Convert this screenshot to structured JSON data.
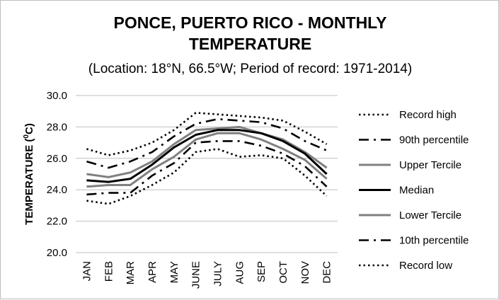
{
  "chart_data": {
    "type": "line",
    "title_line1": "PONCE, PUERTO RICO - MONTHLY",
    "title_line2": "TEMPERATURE",
    "subtitle": "(Location: 18°N, 66.5°W; Period of record: 1971-2014)",
    "ylabel_main": "TEMPERATURE (",
    "ylabel_sup": "0",
    "ylabel_end": "C)",
    "xlabel": "",
    "ylim": [
      20,
      30
    ],
    "yticks": [
      "20.0",
      "22.0",
      "24.0",
      "26.0",
      "28.0",
      "30.0"
    ],
    "grid": true,
    "legend_position": "right",
    "categories": [
      "JAN",
      "FEB",
      "MAR",
      "APR",
      "MAY",
      "JUNE",
      "JULY",
      "AUG",
      "SEP",
      "OCT",
      "NOV",
      "DEC"
    ],
    "series": [
      {
        "name": "Record high",
        "style": "dotted",
        "color": "#000000",
        "values": [
          26.6,
          26.2,
          26.5,
          27.0,
          27.8,
          28.9,
          28.8,
          28.7,
          28.6,
          28.4,
          27.7,
          26.9
        ]
      },
      {
        "name": "90th percentile",
        "style": "dashdot",
        "color": "#000000",
        "values": [
          25.8,
          25.4,
          25.8,
          26.4,
          27.4,
          28.2,
          28.5,
          28.4,
          28.3,
          27.9,
          27.1,
          26.5
        ]
      },
      {
        "name": "Upper Tercile",
        "style": "solid",
        "color": "#808080",
        "values": [
          25.0,
          24.8,
          25.1,
          25.8,
          26.9,
          27.8,
          27.9,
          28.0,
          27.6,
          27.2,
          26.4,
          25.4
        ]
      },
      {
        "name": "Median",
        "style": "solid",
        "color": "#000000",
        "values": [
          24.6,
          24.5,
          24.7,
          25.6,
          26.7,
          27.5,
          27.8,
          27.8,
          27.6,
          27.1,
          26.3,
          25.0
        ]
      },
      {
        "name": "Lower Tercile",
        "style": "solid",
        "color": "#808080",
        "values": [
          24.2,
          24.3,
          24.3,
          25.3,
          26.1,
          27.2,
          27.6,
          27.6,
          27.2,
          26.6,
          25.9,
          24.7
        ]
      },
      {
        "name": "10th percentile",
        "style": "dashdot",
        "color": "#000000",
        "values": [
          23.7,
          23.8,
          23.8,
          24.9,
          25.7,
          27.0,
          27.1,
          27.1,
          26.8,
          26.3,
          25.5,
          24.2
        ]
      },
      {
        "name": "Record low",
        "style": "dotted",
        "color": "#000000",
        "values": [
          23.3,
          23.1,
          23.6,
          24.3,
          25.1,
          26.4,
          26.6,
          26.1,
          26.2,
          26.0,
          24.9,
          23.6
        ]
      }
    ]
  }
}
